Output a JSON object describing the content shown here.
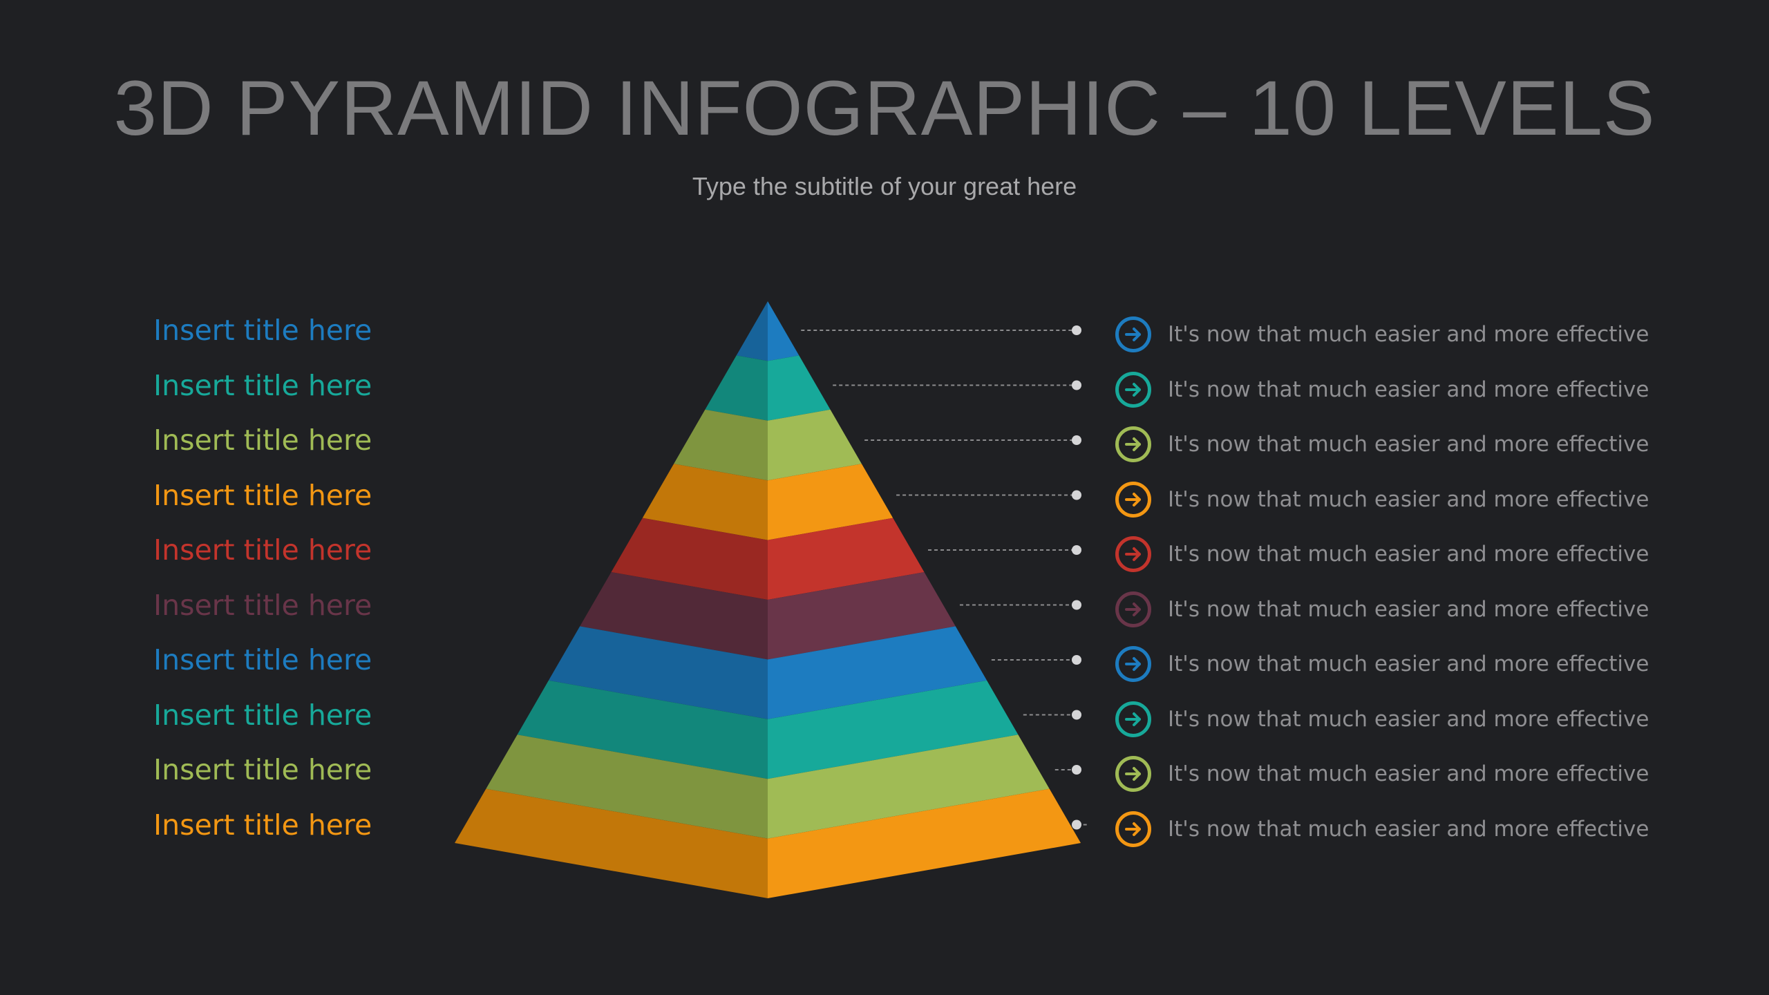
{
  "slide": {
    "title": "3D PYRAMID INFOGRAPHIC – 10 LEVELS",
    "subtitle": "Type the subtitle of your great here"
  },
  "levels": [
    {
      "title": "Insert title here",
      "description": "It's now that much easier and more effective",
      "color": "#1d7cc0",
      "dark": "#17639a"
    },
    {
      "title": "Insert title here",
      "description": "It's now that much easier and more effective",
      "color": "#17a99a",
      "dark": "#12877b"
    },
    {
      "title": "Insert title here",
      "description": "It's now that much easier and more effective",
      "color": "#a0bb55",
      "dark": "#7f953f"
    },
    {
      "title": "Insert title here",
      "description": "It's now that much easier and more effective",
      "color": "#f39713",
      "dark": "#c27709"
    },
    {
      "title": "Insert title here",
      "description": "It's now that much easier and more effective",
      "color": "#c3342c",
      "dark": "#9a2822"
    },
    {
      "title": "Insert title here",
      "description": "It's now that much easier and more effective",
      "color": "#693549",
      "dark": "#522938"
    },
    {
      "title": "Insert title here",
      "description": "It's now that much easier and more effective",
      "color": "#1d7cc0",
      "dark": "#17639a"
    },
    {
      "title": "Insert title here",
      "description": "It's now that much easier and more effective",
      "color": "#17a99a",
      "dark": "#12877b"
    },
    {
      "title": "Insert title here",
      "description": "It's now that much easier and more effective",
      "color": "#a0bb55",
      "dark": "#7f953f"
    },
    {
      "title": "Insert title here",
      "description": "It's now that much easier and more effective",
      "color": "#f39713",
      "dark": "#c27709"
    }
  ],
  "connector_color": "#8c8c8e",
  "icon": "arrow-right-circle-icon"
}
